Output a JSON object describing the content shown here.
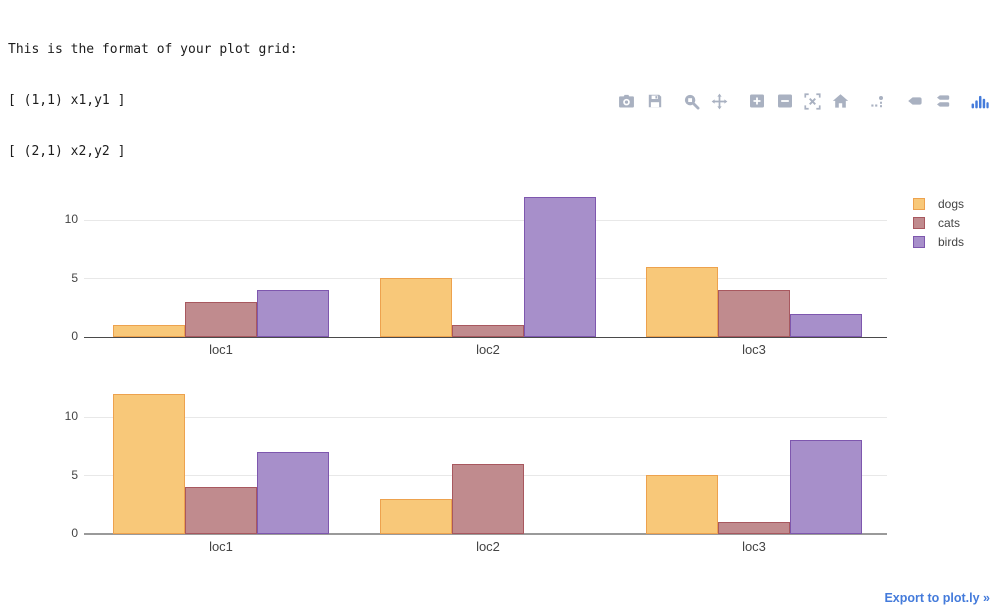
{
  "header": {
    "lines": [
      "This is the format of your plot grid:",
      "[ (1,1) x1,y1 ]",
      "[ (2,1) x2,y2 ]"
    ]
  },
  "modebar": {
    "buttons": [
      "camera-icon",
      "save-icon",
      "zoom-icon",
      "pan-icon",
      "zoom-in-icon",
      "zoom-out-icon",
      "autoscale-icon",
      "reset-home-icon",
      "spikelines-icon",
      "hover-closest-icon",
      "hover-compare-icon",
      "plotly-logo-icon"
    ]
  },
  "legend": {
    "items": [
      {
        "label": "dogs",
        "fill": "#f8c879",
        "border": "#eda24e"
      },
      {
        "label": "cats",
        "fill": "#c08b8e",
        "border": "#a8585f"
      },
      {
        "label": "birds",
        "fill": "#a78fca",
        "border": "#7e57ae"
      }
    ]
  },
  "chart_data": [
    {
      "type": "bar",
      "subplot": "(1,1) x1,y1",
      "categories": [
        "loc1",
        "loc2",
        "loc3"
      ],
      "series": [
        {
          "name": "dogs",
          "values": [
            1,
            5,
            6
          ]
        },
        {
          "name": "cats",
          "values": [
            3,
            1,
            4
          ]
        },
        {
          "name": "birds",
          "values": [
            4,
            12,
            2
          ]
        }
      ],
      "yticks": [
        0,
        5,
        10
      ],
      "ylim": [
        0,
        12.6
      ],
      "grid": true,
      "legend_position": "right"
    },
    {
      "type": "bar",
      "subplot": "(2,1) x2,y2",
      "categories": [
        "loc1",
        "loc2",
        "loc3"
      ],
      "series": [
        {
          "name": "dogs",
          "values": [
            12,
            3,
            5
          ]
        },
        {
          "name": "cats",
          "values": [
            4,
            6,
            1
          ]
        },
        {
          "name": "birds",
          "values": [
            7,
            0,
            8
          ]
        }
      ],
      "yticks": [
        0,
        5,
        10
      ],
      "ylim": [
        0,
        12.6
      ],
      "grid": true,
      "legend_position": "right"
    }
  ],
  "footer": {
    "export_label": "Export to plot.ly »"
  },
  "colors": {
    "accent_blue": "#447bdb",
    "modebar_icon": "#a9b1c1",
    "grid_line": "#e8e8e8",
    "axis_dark": "#4a4a4a",
    "axis_gray": "#9a9a9a",
    "text": "#444444"
  }
}
